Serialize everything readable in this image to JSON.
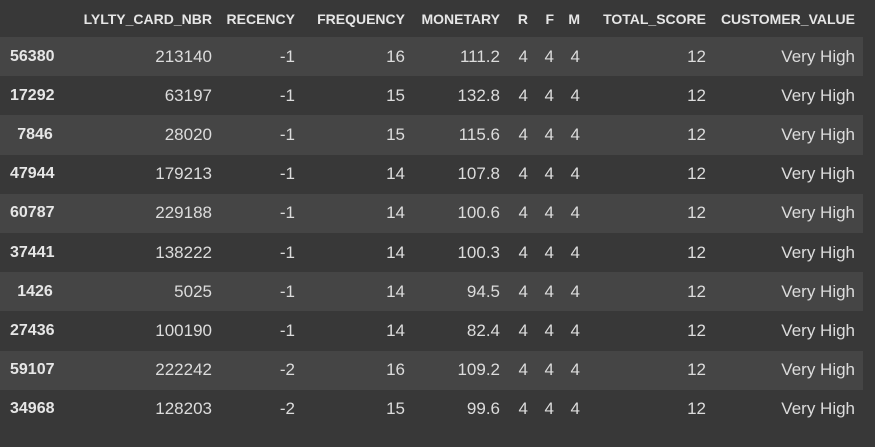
{
  "table": {
    "index_header": "",
    "columns": [
      "LYLTY_CARD_NBR",
      "RECENCY",
      "FREQUENCY",
      "MONETARY",
      "R",
      "F",
      "M",
      "TOTAL_SCORE",
      "CUSTOMER_VALUE"
    ],
    "rows": [
      {
        "index": "56380",
        "cells": [
          "213140",
          "-1",
          "16",
          "111.2",
          "4",
          "4",
          "4",
          "12",
          "Very High"
        ]
      },
      {
        "index": "17292",
        "cells": [
          "63197",
          "-1",
          "15",
          "132.8",
          "4",
          "4",
          "4",
          "12",
          "Very High"
        ]
      },
      {
        "index": "7846",
        "cells": [
          "28020",
          "-1",
          "15",
          "115.6",
          "4",
          "4",
          "4",
          "12",
          "Very High"
        ]
      },
      {
        "index": "47944",
        "cells": [
          "179213",
          "-1",
          "14",
          "107.8",
          "4",
          "4",
          "4",
          "12",
          "Very High"
        ]
      },
      {
        "index": "60787",
        "cells": [
          "229188",
          "-1",
          "14",
          "100.6",
          "4",
          "4",
          "4",
          "12",
          "Very High"
        ]
      },
      {
        "index": "37441",
        "cells": [
          "138222",
          "-1",
          "14",
          "100.3",
          "4",
          "4",
          "4",
          "12",
          "Very High"
        ]
      },
      {
        "index": "1426",
        "cells": [
          "5025",
          "-1",
          "14",
          "94.5",
          "4",
          "4",
          "4",
          "12",
          "Very High"
        ]
      },
      {
        "index": "27436",
        "cells": [
          "100190",
          "-1",
          "14",
          "82.4",
          "4",
          "4",
          "4",
          "12",
          "Very High"
        ]
      },
      {
        "index": "59107",
        "cells": [
          "222242",
          "-2",
          "16",
          "109.2",
          "4",
          "4",
          "4",
          "12",
          "Very High"
        ]
      },
      {
        "index": "34968",
        "cells": [
          "128203",
          "-2",
          "15",
          "99.6",
          "4",
          "4",
          "4",
          "12",
          "Very High"
        ]
      }
    ]
  },
  "colors": {
    "background": "#383838",
    "row_alt": "#454545",
    "text": "#dcdcdc"
  }
}
